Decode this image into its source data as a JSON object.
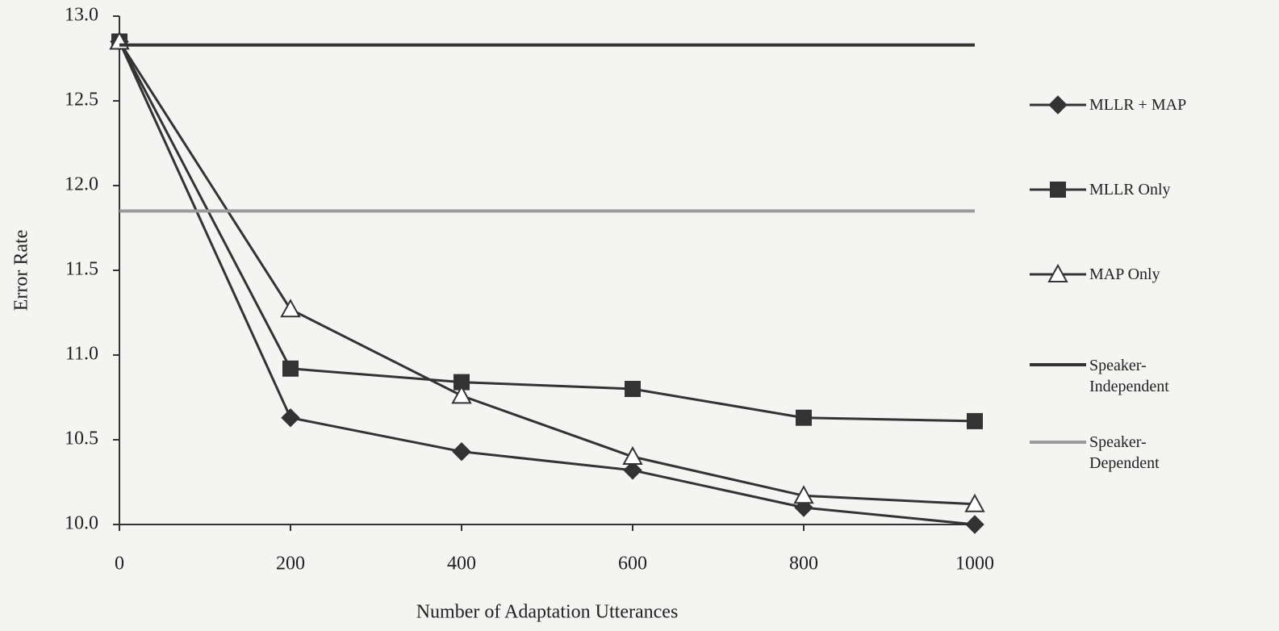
{
  "chart_data": {
    "type": "line",
    "xlabel": "Number of Adaptation Utterances",
    "ylabel": "Error Rate",
    "x": [
      0,
      200,
      400,
      600,
      800,
      1000
    ],
    "xlim": [
      0,
      1000
    ],
    "xticks": [
      0,
      200,
      400,
      600,
      800,
      1000
    ],
    "ylim": [
      10,
      13
    ],
    "yticks": [
      {
        "value": 10,
        "label": "10.0"
      },
      10.5,
      {
        "value": 11,
        "label": "11.0"
      },
      11.5,
      {
        "value": 12,
        "label": "12.0"
      },
      12.5,
      {
        "value": 13,
        "label": "13.0"
      }
    ],
    "legend": "right",
    "series": [
      {
        "name": "MLLR + MAP",
        "color": "#333333",
        "marker": "diamond",
        "values": [
          12.85,
          10.63,
          10.43,
          10.32,
          10.1,
          10.0
        ]
      },
      {
        "name": "MLLR Only",
        "color": "#333333",
        "marker": "square",
        "values": [
          12.85,
          10.92,
          10.84,
          10.8,
          10.63,
          10.61
        ]
      },
      {
        "name": "MAP Only",
        "color": "#333333",
        "marker": "triangle",
        "values": [
          12.85,
          11.27,
          10.76,
          10.4,
          10.17,
          10.12
        ]
      },
      {
        "name": "Speaker-Independent",
        "color": "#333333",
        "marker": "none",
        "values": [
          12.83,
          12.83,
          12.83,
          12.83,
          12.83,
          12.83
        ]
      },
      {
        "name": "Speaker-Dependent",
        "color": "#9a9a9a",
        "marker": "none",
        "values": [
          11.85,
          11.85,
          11.85,
          11.85,
          11.85,
          11.85
        ]
      }
    ]
  }
}
